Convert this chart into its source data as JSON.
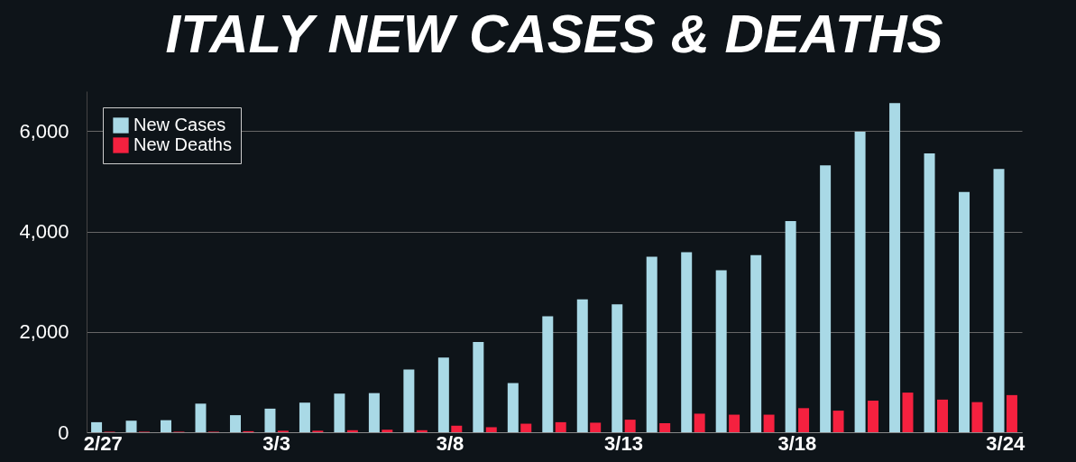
{
  "chart_data": {
    "type": "bar",
    "title": "ITALY NEW CASES & DEATHS",
    "categories": [
      "2/27",
      null,
      null,
      null,
      null,
      "3/3",
      null,
      null,
      null,
      null,
      "3/8",
      null,
      null,
      null,
      null,
      "3/13",
      null,
      null,
      null,
      null,
      "3/18",
      null,
      null,
      null,
      null,
      null,
      "3/24"
    ],
    "series": [
      {
        "name": "New Cases",
        "color": "#a9d9e6",
        "values": [
          200,
          230,
          240,
          570,
          340,
          470,
          590,
          770,
          780,
          1250,
          1490,
          1800,
          980,
          2310,
          2650,
          2550,
          3500,
          3590,
          3230,
          3530,
          4210,
          5320,
          5990,
          6560,
          5560,
          4790,
          5250
        ]
      },
      {
        "name": "New Deaths",
        "color": "#f5213f",
        "values": [
          10,
          10,
          10,
          10,
          20,
          30,
          30,
          40,
          50,
          40,
          130,
          100,
          170,
          200,
          190,
          250,
          180,
          370,
          350,
          350,
          480,
          430,
          630,
          790,
          650,
          600,
          740
        ]
      }
    ],
    "ylim": [
      0,
      6800
    ],
    "yticks": [
      0,
      {
        "value": 2000,
        "label": "2,000"
      },
      {
        "value": 4000,
        "label": "4,000"
      },
      {
        "value": 6000,
        "label": "6,000"
      }
    ],
    "grid": "y",
    "legend": "top left"
  }
}
